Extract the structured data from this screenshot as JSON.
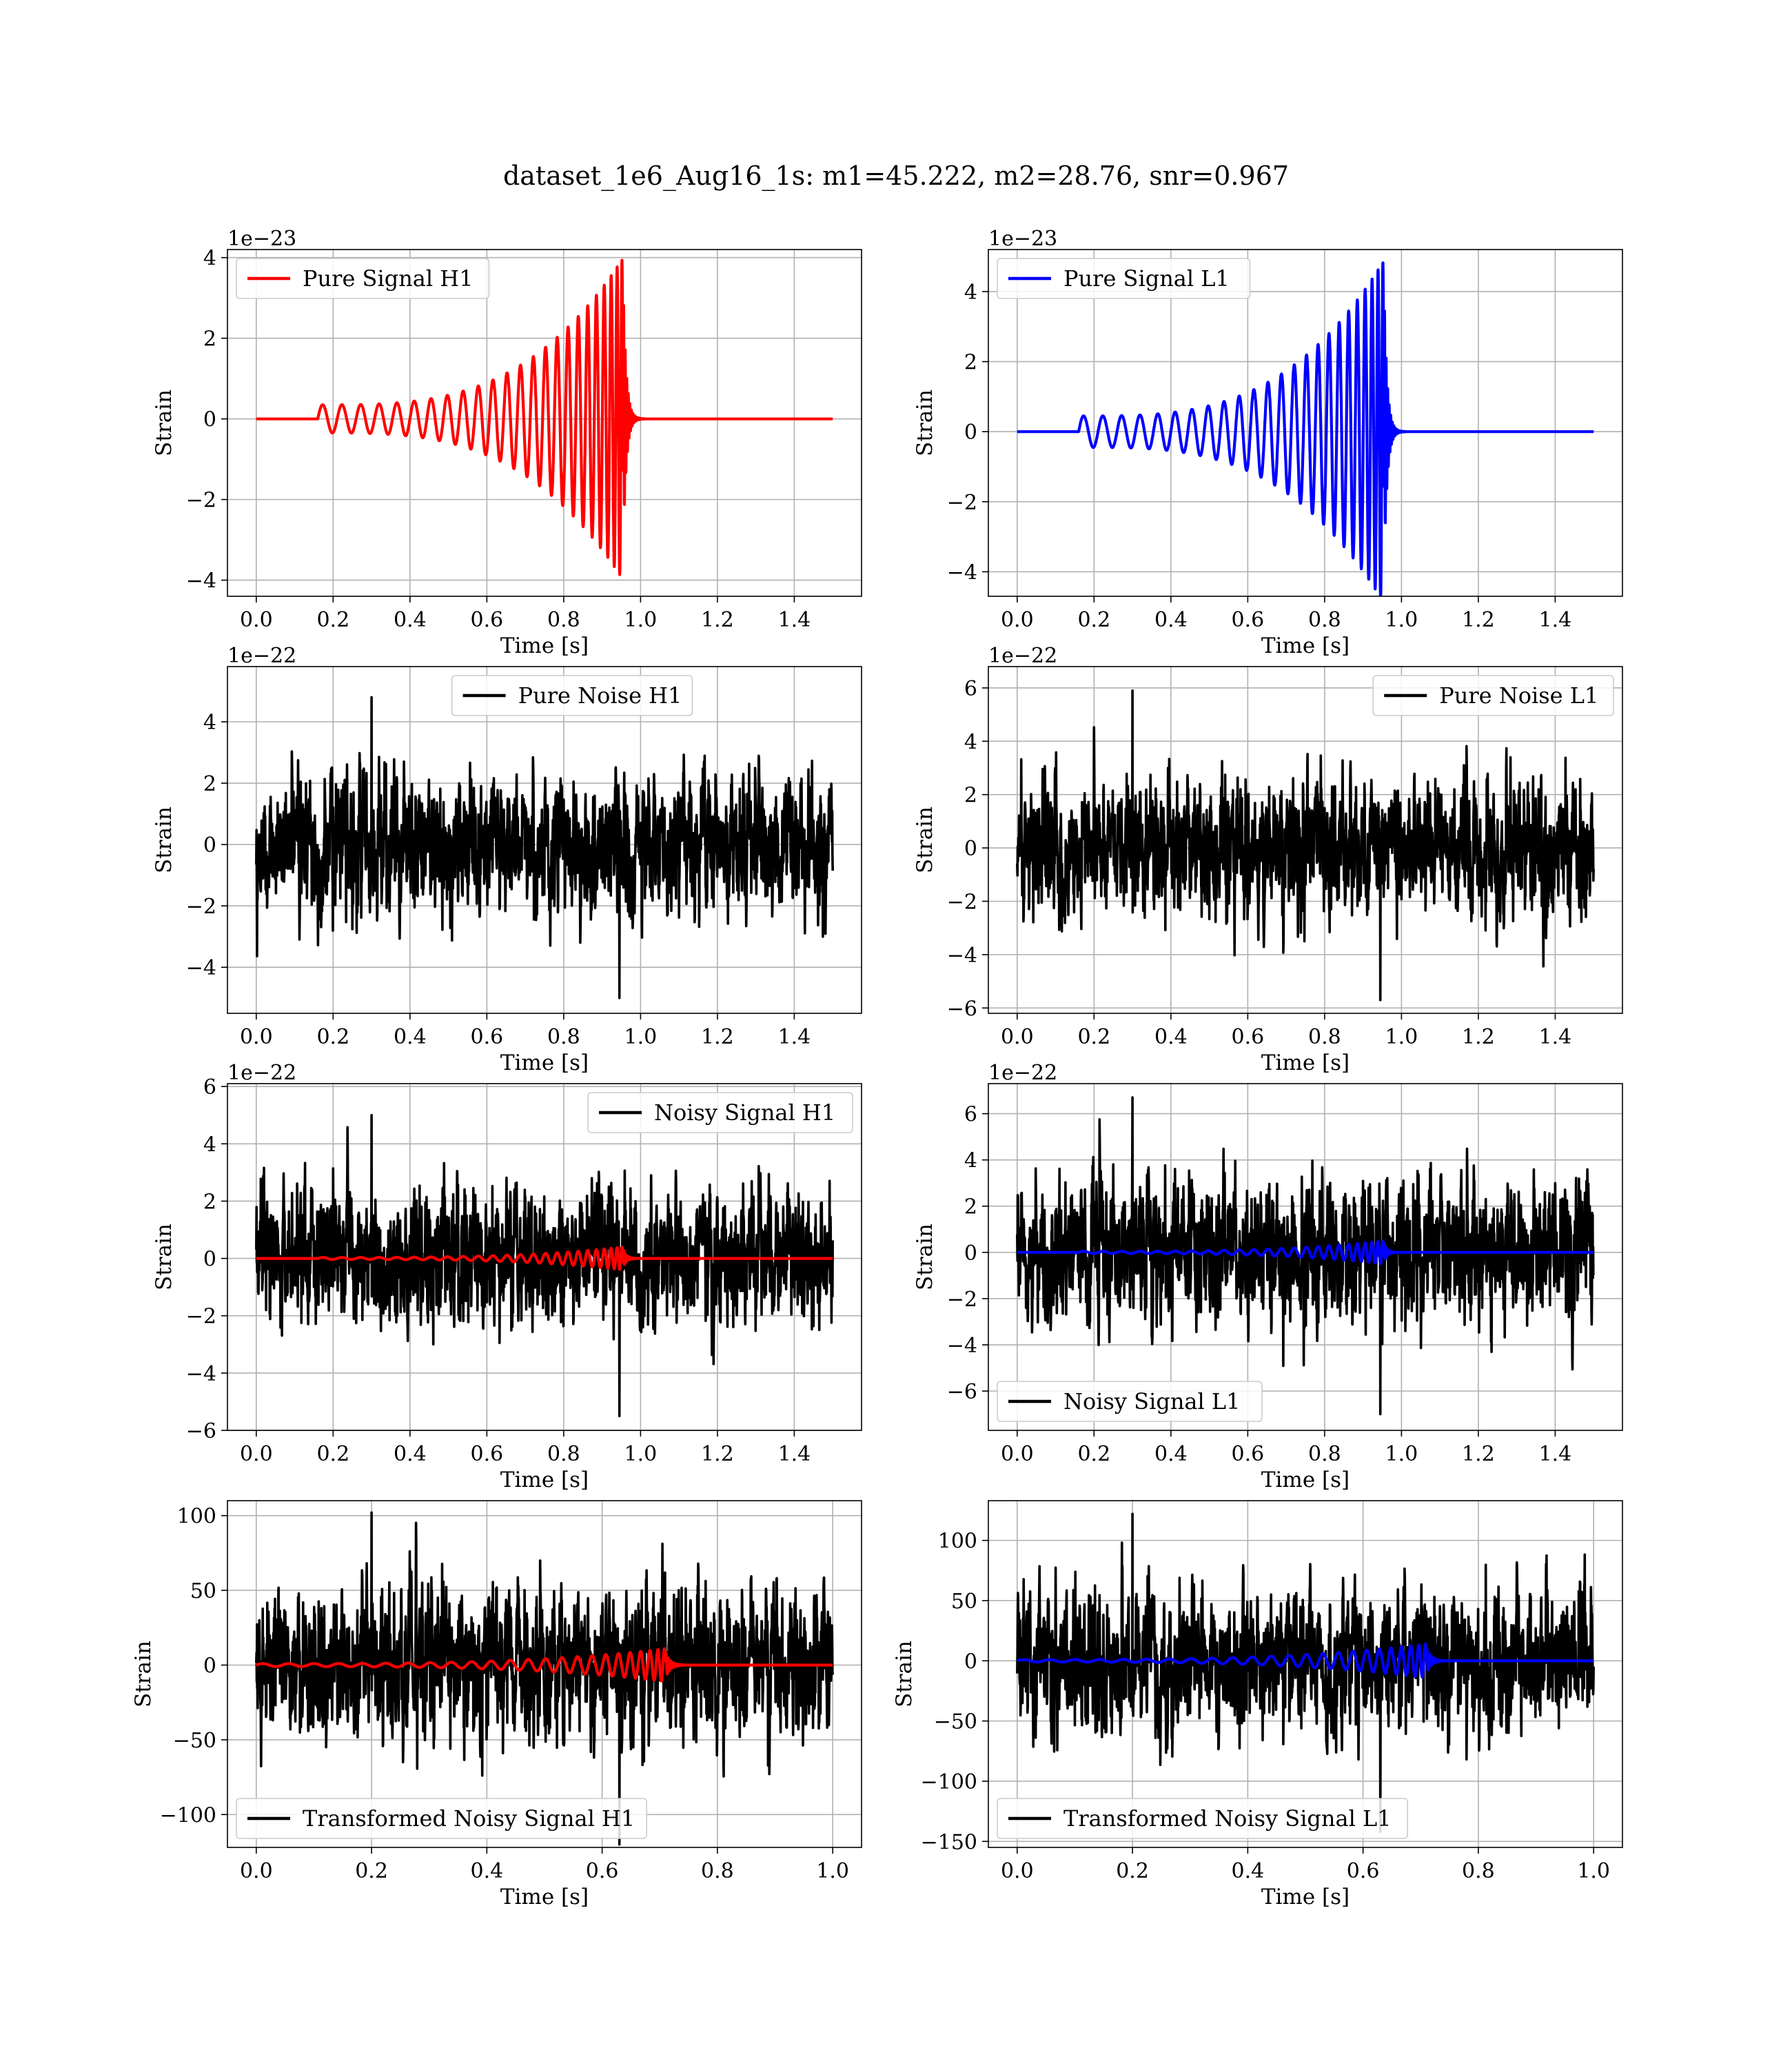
{
  "figure": {
    "title": "dataset_1e6_Aug16_1s: m1=45.222, m2=28.76, snr=0.967",
    "colors": {
      "h1_signal": "#ff0000",
      "l1_signal": "#0000ff",
      "noise": "#000000",
      "grid": "#b0b0b0"
    }
  },
  "chart_data": [
    {
      "id": "pure-signal-h1",
      "type": "line",
      "xlabel": "Time [s]",
      "ylabel": "Strain",
      "offset_text": "1e−23",
      "xlim": [
        -0.075,
        1.575
      ],
      "ylim": [
        -4.4,
        4.2
      ],
      "xticks": [
        0.0,
        0.2,
        0.4,
        0.6,
        0.8,
        1.0,
        1.2,
        1.4
      ],
      "xtick_labels": [
        "0.0",
        "0.2",
        "0.4",
        "0.6",
        "0.8",
        "1.0",
        "1.2",
        "1.4"
      ],
      "yticks": [
        -4,
        -2,
        0,
        2,
        4
      ],
      "ytick_labels": [
        "−4",
        "−2",
        "0",
        "2",
        "4"
      ],
      "legend": "upper left",
      "grid": true,
      "series": [
        {
          "name": "Pure Signal H1",
          "color": "#ff0000",
          "kind": "chirp",
          "t_start": 0.16,
          "t_merge": 0.955,
          "amp_start": 0.35,
          "amp_peak": 4.0,
          "t_end": 1.5
        }
      ]
    },
    {
      "id": "pure-signal-l1",
      "type": "line",
      "xlabel": "Time [s]",
      "ylabel": "Strain",
      "offset_text": "1e−23",
      "xlim": [
        -0.075,
        1.575
      ],
      "ylim": [
        -4.7,
        5.2
      ],
      "xticks": [
        0.0,
        0.2,
        0.4,
        0.6,
        0.8,
        1.0,
        1.2,
        1.4
      ],
      "xtick_labels": [
        "0.0",
        "0.2",
        "0.4",
        "0.6",
        "0.8",
        "1.0",
        "1.2",
        "1.4"
      ],
      "yticks": [
        -4,
        -2,
        0,
        2,
        4
      ],
      "ytick_labels": [
        "−4",
        "−2",
        "0",
        "2",
        "4"
      ],
      "legend": "upper left",
      "grid": true,
      "series": [
        {
          "name": "Pure Signal L1",
          "color": "#0000ff",
          "kind": "chirp",
          "t_start": 0.16,
          "t_merge": 0.955,
          "amp_start": 0.45,
          "amp_peak": 4.9,
          "t_end": 1.5
        }
      ]
    },
    {
      "id": "pure-noise-h1",
      "type": "line",
      "xlabel": "Time [s]",
      "ylabel": "Strain",
      "offset_text": "1e−22",
      "xlim": [
        -0.075,
        1.575
      ],
      "ylim": [
        -5.5,
        5.8
      ],
      "xticks": [
        0.0,
        0.2,
        0.4,
        0.6,
        0.8,
        1.0,
        1.2,
        1.4
      ],
      "xtick_labels": [
        "0.0",
        "0.2",
        "0.4",
        "0.6",
        "0.8",
        "1.0",
        "1.2",
        "1.4"
      ],
      "yticks": [
        -4,
        -2,
        0,
        2,
        4
      ],
      "ytick_labels": [
        "−4",
        "−2",
        "0",
        "2",
        "4"
      ],
      "legend": "upper center",
      "grid": true,
      "series": [
        {
          "name": "Pure Noise H1",
          "color": "#000000",
          "kind": "noise",
          "range": [
            -5.0,
            4.8
          ],
          "t_end": 1.5
        }
      ]
    },
    {
      "id": "pure-noise-l1",
      "type": "line",
      "xlabel": "Time [s]",
      "ylabel": "Strain",
      "offset_text": "1e−22",
      "xlim": [
        -0.075,
        1.575
      ],
      "ylim": [
        -6.2,
        6.8
      ],
      "xticks": [
        0.0,
        0.2,
        0.4,
        0.6,
        0.8,
        1.0,
        1.2,
        1.4
      ],
      "xtick_labels": [
        "0.0",
        "0.2",
        "0.4",
        "0.6",
        "0.8",
        "1.0",
        "1.2",
        "1.4"
      ],
      "yticks": [
        -6,
        -4,
        -2,
        0,
        2,
        4,
        6
      ],
      "ytick_labels": [
        "−6",
        "−4",
        "−2",
        "0",
        "2",
        "4",
        "6"
      ],
      "legend": "upper right",
      "grid": true,
      "series": [
        {
          "name": "Pure Noise L1",
          "color": "#000000",
          "kind": "noise",
          "range": [
            -5.7,
            5.9
          ],
          "t_end": 1.5
        }
      ]
    },
    {
      "id": "noisy-signal-h1",
      "type": "line",
      "xlabel": "Time [s]",
      "ylabel": "Strain",
      "offset_text": "1e−22",
      "xlim": [
        -0.075,
        1.575
      ],
      "ylim": [
        -6.0,
        6.1
      ],
      "xticks": [
        0.0,
        0.2,
        0.4,
        0.6,
        0.8,
        1.0,
        1.2,
        1.4
      ],
      "xtick_labels": [
        "0.0",
        "0.2",
        "0.4",
        "0.6",
        "0.8",
        "1.0",
        "1.2",
        "1.4"
      ],
      "yticks": [
        -6,
        -4,
        -2,
        0,
        2,
        4,
        6
      ],
      "ytick_labels": [
        "−6",
        "−4",
        "−2",
        "0",
        "2",
        "4",
        "6"
      ],
      "legend": "upper right",
      "grid": true,
      "series": [
        {
          "name": "Noisy Signal H1",
          "color": "#000000",
          "kind": "noise",
          "range": [
            -5.5,
            5.0
          ],
          "t_end": 1.5
        },
        {
          "color": "#ff0000",
          "kind": "chirp",
          "t_start": 0.16,
          "t_merge": 0.955,
          "amp_start": 0.035,
          "amp_peak": 0.4,
          "t_end": 1.5
        }
      ]
    },
    {
      "id": "noisy-signal-l1",
      "type": "line",
      "xlabel": "Time [s]",
      "ylabel": "Strain",
      "offset_text": "1e−22",
      "xlim": [
        -0.075,
        1.575
      ],
      "ylim": [
        -7.7,
        7.3
      ],
      "xticks": [
        0.0,
        0.2,
        0.4,
        0.6,
        0.8,
        1.0,
        1.2,
        1.4
      ],
      "xtick_labels": [
        "0.0",
        "0.2",
        "0.4",
        "0.6",
        "0.8",
        "1.0",
        "1.2",
        "1.4"
      ],
      "yticks": [
        -6,
        -4,
        -2,
        0,
        2,
        4,
        6
      ],
      "ytick_labels": [
        "−6",
        "−4",
        "−2",
        "0",
        "2",
        "4",
        "6"
      ],
      "legend": "lower left",
      "grid": true,
      "series": [
        {
          "name": "Noisy Signal L1",
          "color": "#000000",
          "kind": "noise",
          "range": [
            -7.0,
            6.7
          ],
          "t_end": 1.5
        },
        {
          "color": "#0000ff",
          "kind": "chirp",
          "t_start": 0.16,
          "t_merge": 0.955,
          "amp_start": 0.045,
          "amp_peak": 0.5,
          "t_end": 1.5
        }
      ]
    },
    {
      "id": "transformed-noisy-signal-h1",
      "type": "line",
      "xlabel": "Time [s]",
      "ylabel": "Strain",
      "offset_text": "",
      "xlim": [
        -0.05,
        1.05
      ],
      "ylim": [
        -122,
        110
      ],
      "xticks": [
        0.0,
        0.2,
        0.4,
        0.6,
        0.8,
        1.0
      ],
      "xtick_labels": [
        "0.0",
        "0.2",
        "0.4",
        "0.6",
        "0.8",
        "1.0"
      ],
      "yticks": [
        -100,
        -50,
        0,
        50,
        100
      ],
      "ytick_labels": [
        "−100",
        "−50",
        "0",
        "50",
        "100"
      ],
      "legend": "lower left",
      "grid": true,
      "series": [
        {
          "name": "Transformed Noisy Signal H1",
          "color": "#000000",
          "kind": "noise",
          "range": [
            -120,
            102
          ],
          "t_end": 1.0
        },
        {
          "color": "#ff0000",
          "kind": "chirp",
          "t_start": 0.0,
          "t_merge": 0.71,
          "amp_start": 1.0,
          "amp_peak": 11,
          "t_end": 1.0
        }
      ]
    },
    {
      "id": "transformed-noisy-signal-l1",
      "type": "line",
      "xlabel": "Time [s]",
      "ylabel": "Strain",
      "offset_text": "",
      "xlim": [
        -0.05,
        1.05
      ],
      "ylim": [
        -155,
        133
      ],
      "xticks": [
        0.0,
        0.2,
        0.4,
        0.6,
        0.8,
        1.0
      ],
      "xtick_labels": [
        "0.0",
        "0.2",
        "0.4",
        "0.6",
        "0.8",
        "1.0"
      ],
      "yticks": [
        -150,
        -100,
        -50,
        0,
        50,
        100
      ],
      "ytick_labels": [
        "−150",
        "−100",
        "−50",
        "0",
        "50",
        "100"
      ],
      "legend": "lower left",
      "grid": true,
      "series": [
        {
          "name": "Transformed Noisy Signal L1",
          "color": "#000000",
          "kind": "noise",
          "range": [
            -142,
            122
          ],
          "t_end": 1.0
        },
        {
          "color": "#0000ff",
          "kind": "chirp",
          "t_start": 0.0,
          "t_merge": 0.71,
          "amp_start": 1.0,
          "amp_peak": 14,
          "t_end": 1.0
        }
      ]
    }
  ]
}
